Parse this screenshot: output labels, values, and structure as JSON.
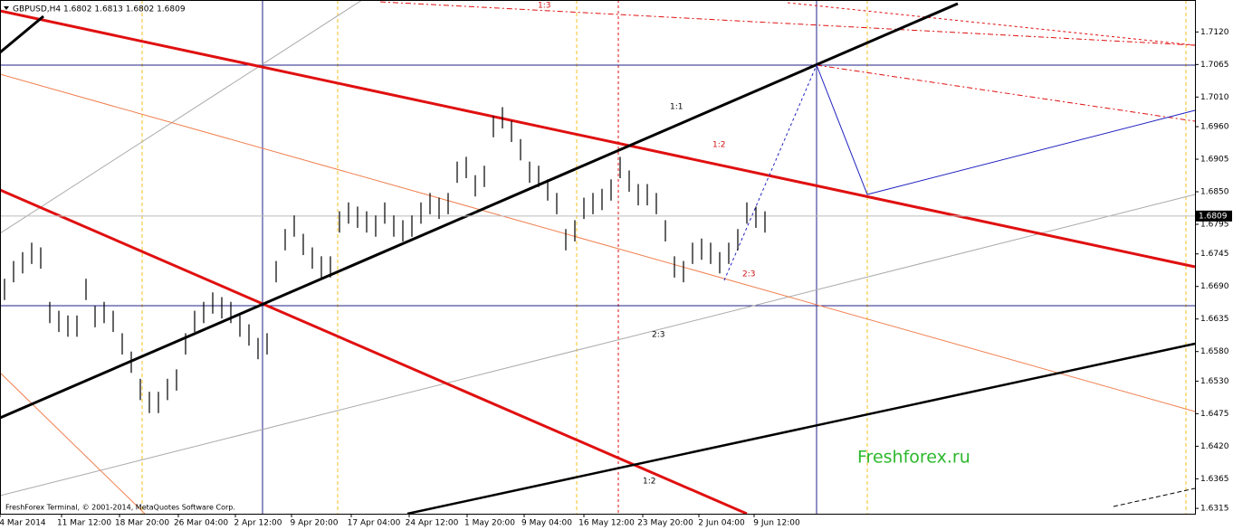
{
  "chart_data": {
    "type": "hl",
    "title": "GBPUSD,H4  1.6802 1.6813 1.6802 1.6809",
    "footer": "FreshForex Terminal, © 2001-2014, MetaQuotes Software Corp.",
    "watermark": "Freshforex.ru",
    "color": "#000000",
    "last_price": 1.6809,
    "ylim": [
      1.6306,
      1.7174
    ],
    "yticks": [
      {
        "value": 1.712,
        "label": "1.7120"
      },
      {
        "value": 1.7065,
        "label": "1.7065"
      },
      {
        "value": 1.701,
        "label": "1.7010"
      },
      {
        "value": 1.696,
        "label": "1.6960"
      },
      {
        "value": 1.6905,
        "label": "1.6905"
      },
      {
        "value": 1.685,
        "label": "1.6850"
      },
      {
        "value": 1.6795,
        "label": "1.6795"
      },
      {
        "value": 1.6745,
        "label": "1.6745"
      },
      {
        "value": 1.669,
        "label": "1.6690"
      },
      {
        "value": 1.6635,
        "label": "1.6635"
      },
      {
        "value": 1.658,
        "label": "1.6580"
      },
      {
        "value": 1.653,
        "label": "1.6530"
      },
      {
        "value": 1.6475,
        "label": "1.6475"
      },
      {
        "value": 1.642,
        "label": "1.6420"
      },
      {
        "value": 1.6365,
        "label": "1.6365"
      },
      {
        "value": 1.6315,
        "label": "1.6315"
      }
    ],
    "xlabels": [
      "4 Mar 2014",
      "11 Mar 12:00",
      "18 Mar 20:00",
      "26 Mar 04:00",
      "2 Apr 12:00",
      "9 Apr 20:00",
      "17 Apr 04:00",
      "24 Apr 12:00",
      "1 May 20:00",
      "9 May 04:00",
      "16 May 12:00",
      "23 May 20:00",
      "2 Jun 04:00",
      "9 Jun 12:00"
    ],
    "annotations": [
      "1:3",
      "1:1",
      "1:2",
      "2:3",
      "2:3",
      "1:2"
    ],
    "high": [
      1.6703,
      1.6733,
      1.6748,
      1.6764,
      1.6756,
      1.6664,
      1.6649,
      1.6641,
      1.6641,
      1.6703,
      1.6657,
      1.6664,
      1.6649,
      1.6611,
      1.658,
      1.6534,
      1.6512,
      1.6512,
      1.6534,
      1.655,
      1.6611,
      1.6649,
      1.6664,
      1.668,
      1.6672,
      1.6664,
      1.6641,
      1.6626,
      1.6603,
      1.6611,
      1.6733,
      1.6787,
      1.681,
      1.6779,
      1.6756,
      1.6741,
      1.6741,
      1.6817,
      1.6832,
      1.6825,
      1.6817,
      1.681,
      1.6832,
      1.681,
      1.6802,
      1.681,
      1.6832,
      1.6848,
      1.684,
      1.6848,
      1.6901,
      1.6909,
      1.6878,
      1.6894,
      1.6978,
      1.6993,
      1.697,
      1.6939,
      1.6901,
      1.6894,
      1.6871,
      1.6848,
      1.6787,
      1.6802,
      1.684,
      1.6848,
      1.6855,
      1.6871,
      1.6909,
      1.6886,
      1.6863,
      1.6863,
      1.6848,
      1.6802,
      1.6741,
      1.6733,
      1.6764,
      1.6771,
      1.6764,
      1.6748,
      1.6764,
      1.6787,
      1.6832,
      1.6825,
      1.6817
    ],
    "low": [
      1.6667,
      1.6697,
      1.6712,
      1.6728,
      1.672,
      1.6628,
      1.6613,
      1.6605,
      1.6605,
      1.6667,
      1.6621,
      1.6628,
      1.6613,
      1.6575,
      1.6544,
      1.6498,
      1.6476,
      1.6476,
      1.6498,
      1.6514,
      1.6575,
      1.6613,
      1.6628,
      1.6644,
      1.6636,
      1.6628,
      1.6605,
      1.659,
      1.6567,
      1.6575,
      1.6697,
      1.6751,
      1.6774,
      1.6743,
      1.672,
      1.6705,
      1.6705,
      1.6781,
      1.6796,
      1.6789,
      1.6781,
      1.6774,
      1.6796,
      1.6774,
      1.6766,
      1.6774,
      1.6796,
      1.6812,
      1.6804,
      1.6812,
      1.6865,
      1.6873,
      1.6842,
      1.6858,
      1.6942,
      1.6957,
      1.6934,
      1.6903,
      1.6865,
      1.6858,
      1.6835,
      1.6812,
      1.6751,
      1.6766,
      1.6804,
      1.6812,
      1.6819,
      1.6835,
      1.6873,
      1.685,
      1.6827,
      1.6827,
      1.6812,
      1.6766,
      1.6705,
      1.6697,
      1.6728,
      1.6735,
      1.6728,
      1.6712,
      1.6728,
      1.6751,
      1.6796,
      1.6789,
      1.6781
    ]
  }
}
